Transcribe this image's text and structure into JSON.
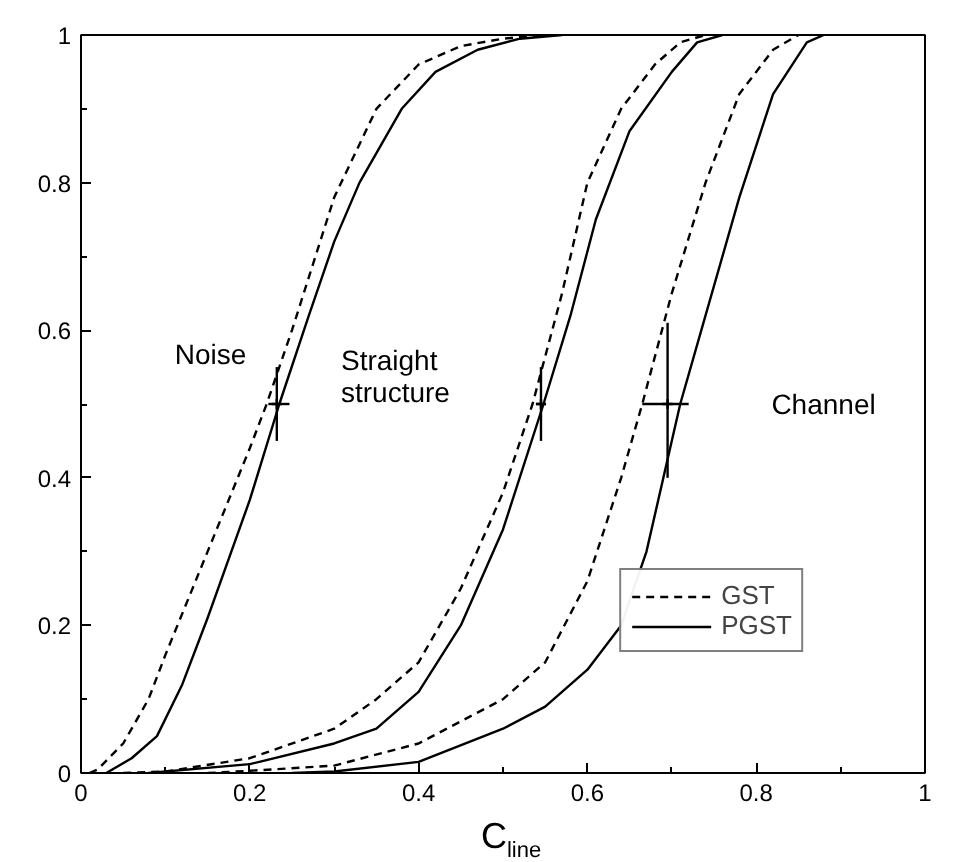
{
  "chart_data": {
    "type": "line",
    "xlabel": "C$_{line}$",
    "xlim": [
      0,
      1
    ],
    "ylim": [
      0,
      1
    ],
    "xticks": [
      0,
      0.2,
      0.4,
      0.6,
      0.8,
      1
    ],
    "yticks": [
      0,
      0.2,
      0.4,
      0.6,
      0.8,
      1
    ],
    "grid": false,
    "legend": "bottom right",
    "marker": "none",
    "series": [
      {
        "name": "GST",
        "color": "#000000",
        "line_style": "dashed",
        "x": [
          0.01,
          0.02,
          0.05,
          0.08,
          0.1,
          0.15,
          0.2,
          0.22,
          0.25,
          0.3,
          0.35,
          0.4,
          0.45,
          0.5,
          0.55
        ],
        "values": [
          0,
          0.005,
          0.04,
          0.1,
          0.16,
          0.3,
          0.44,
          0.5,
          0.6,
          0.78,
          0.9,
          0.96,
          0.985,
          0.995,
          1
        ]
      },
      {
        "name": "PGST",
        "color": "#000000",
        "line_style": "solid",
        "x": [
          0.03,
          0.06,
          0.09,
          0.12,
          0.15,
          0.2,
          0.235,
          0.27,
          0.3,
          0.33,
          0.38,
          0.42,
          0.47,
          0.52,
          0.57
        ],
        "values": [
          0,
          0.02,
          0.05,
          0.12,
          0.21,
          0.37,
          0.5,
          0.62,
          0.72,
          0.8,
          0.9,
          0.95,
          0.98,
          0.995,
          1
        ]
      },
      {
        "color": "#000000",
        "line_style": "dashed",
        "x": [
          0.05,
          0.1,
          0.2,
          0.3,
          0.35,
          0.4,
          0.45,
          0.5,
          0.535,
          0.57,
          0.6,
          0.64,
          0.68,
          0.71,
          0.74
        ],
        "values": [
          0,
          0.002,
          0.02,
          0.06,
          0.1,
          0.15,
          0.25,
          0.38,
          0.5,
          0.65,
          0.8,
          0.9,
          0.96,
          0.99,
          1
        ]
      },
      {
        "color": "#000000",
        "line_style": "solid",
        "x": [
          0.08,
          0.2,
          0.3,
          0.35,
          0.4,
          0.45,
          0.5,
          0.548,
          0.58,
          0.61,
          0.65,
          0.7,
          0.73,
          0.76
        ],
        "values": [
          0,
          0.012,
          0.04,
          0.06,
          0.11,
          0.2,
          0.33,
          0.5,
          0.62,
          0.75,
          0.87,
          0.95,
          0.99,
          1
        ]
      },
      {
        "color": "#000000",
        "line_style": "dashed",
        "x": [
          0.15,
          0.2,
          0.3,
          0.4,
          0.5,
          0.55,
          0.6,
          0.64,
          0.665,
          0.7,
          0.74,
          0.78,
          0.82,
          0.85
        ],
        "values": [
          0,
          0.003,
          0.01,
          0.04,
          0.1,
          0.15,
          0.26,
          0.4,
          0.5,
          0.65,
          0.8,
          0.92,
          0.98,
          1
        ]
      },
      {
        "color": "#000000",
        "line_style": "solid",
        "x": [
          0.25,
          0.3,
          0.4,
          0.5,
          0.55,
          0.6,
          0.64,
          0.67,
          0.69,
          0.71,
          0.74,
          0.78,
          0.82,
          0.86,
          0.88
        ],
        "values": [
          0,
          0.002,
          0.015,
          0.06,
          0.09,
          0.14,
          0.2,
          0.3,
          0.4,
          0.5,
          0.62,
          0.78,
          0.92,
          0.99,
          1
        ]
      },
      {
        "type": "scatter",
        "marker": "cross",
        "color": "#000000",
        "x": [
          0.232,
          0.545,
          0.695
        ],
        "values": [
          0.5,
          0.5,
          0.5
        ],
        "errors": [
          0.05,
          0.05,
          [
            0.4,
            0.61
          ]
        ],
        "xerrors": [
          [
            0.222,
            0.247
          ],
          0.006,
          [
            0.665,
            0.72
          ]
        ]
      }
    ],
    "annotations": [
      "Noise",
      "Straight\nstructure",
      "Channel"
    ]
  }
}
